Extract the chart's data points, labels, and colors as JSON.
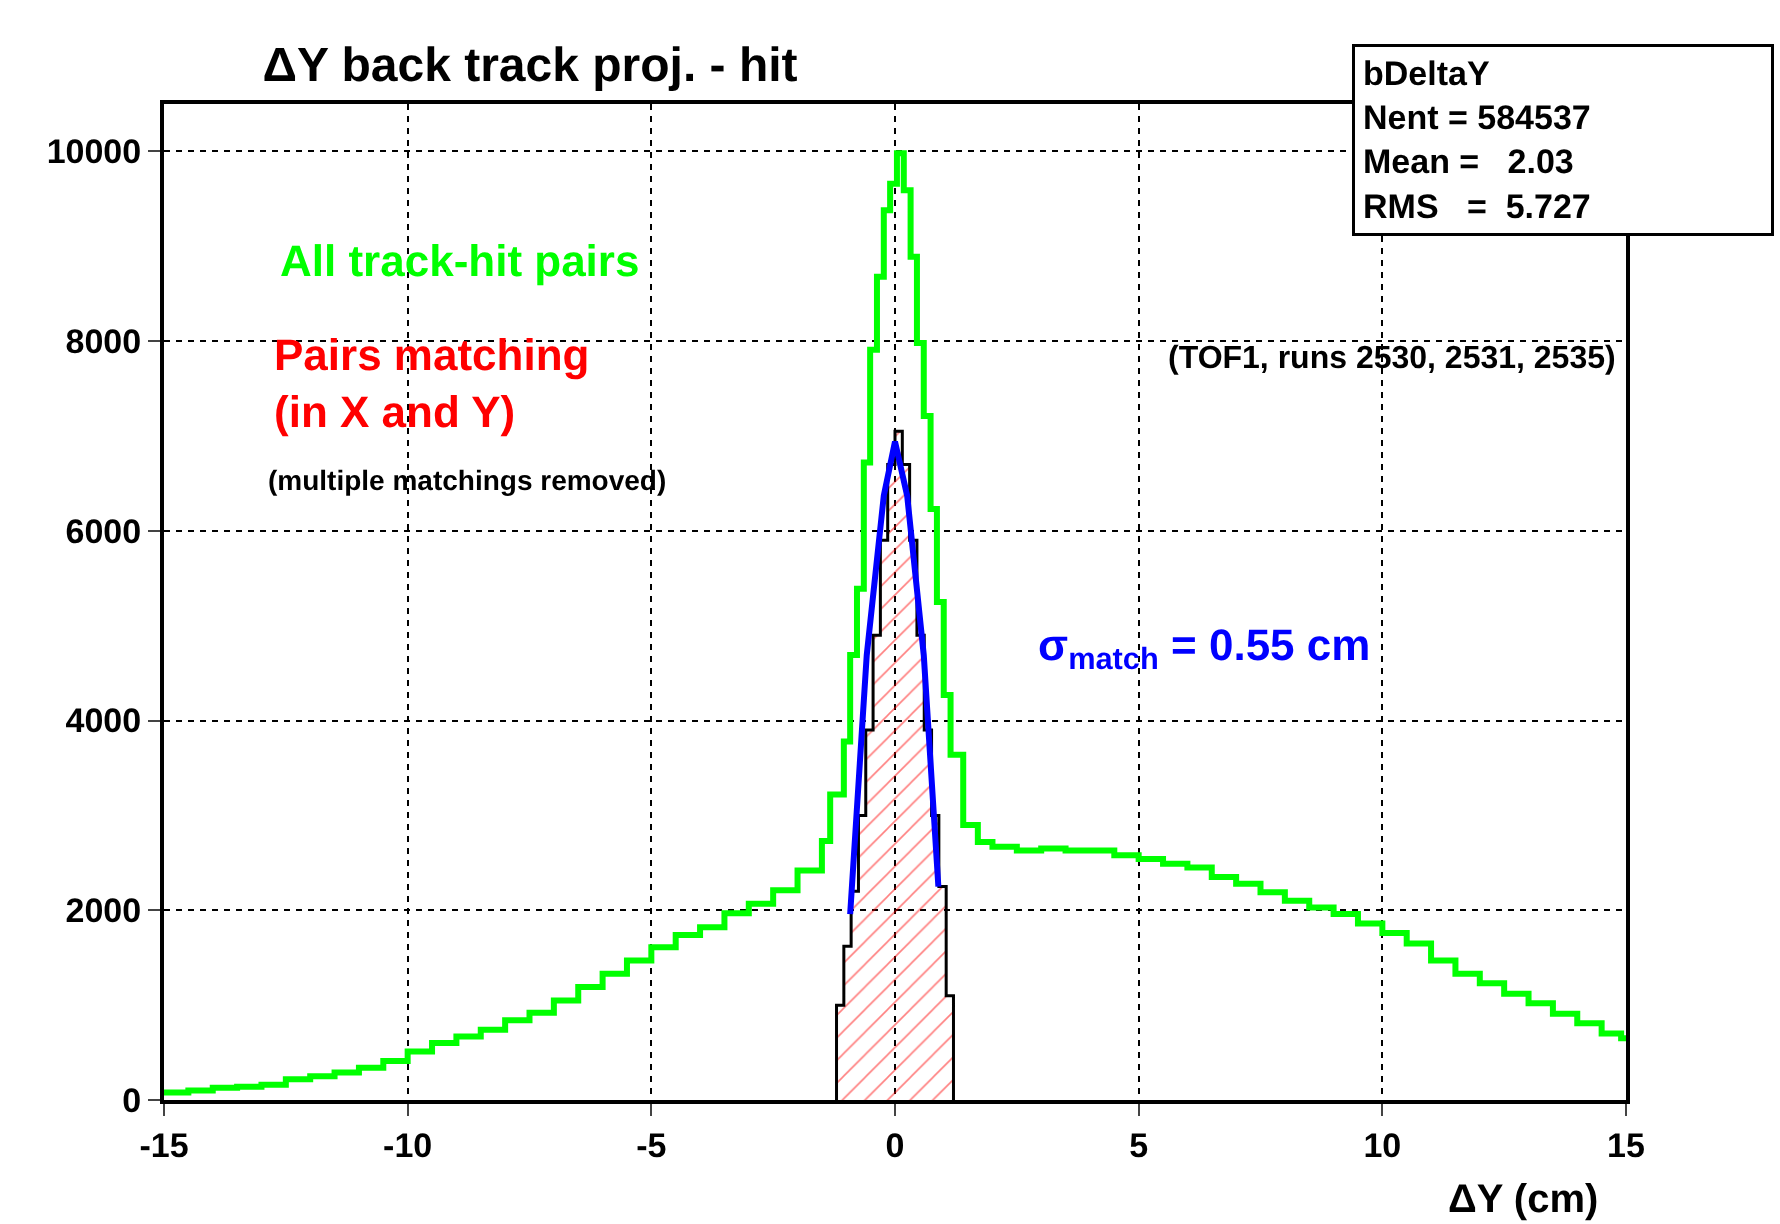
{
  "chart_data": {
    "type": "step",
    "title": "ΔY back track proj. - hit",
    "xlabel": "ΔY (cm)",
    "xlim": [
      -15,
      15
    ],
    "xticks": [
      -15,
      -10,
      -5,
      0,
      5,
      10,
      15
    ],
    "ylim": [
      0,
      10500
    ],
    "yticks": [
      0,
      2000,
      4000,
      6000,
      8000,
      10000
    ],
    "grid": true,
    "series": [
      {
        "color": "#00ff00",
        "x": [
          -15,
          -14.5,
          -14,
          -13.5,
          -13,
          -12.5,
          -12,
          -11.5,
          -11,
          -10.5,
          -10,
          -9.5,
          -9,
          -8.5,
          -8,
          -7.5,
          -7,
          -6.5,
          -6,
          -5.5,
          -5,
          -4.5,
          -4,
          -3.5,
          -3,
          -2.5,
          -2,
          -1.5,
          -1.33,
          -1.05,
          -0.92,
          -0.78,
          -0.64,
          -0.51,
          -0.37,
          -0.23,
          -0.1,
          0.04,
          0.18,
          0.32,
          0.45,
          0.59,
          0.73,
          0.86,
          1.0,
          1.14,
          1.4,
          1.7,
          2,
          2.5,
          3,
          3.5,
          4,
          4.5,
          5,
          5.5,
          6,
          6.5,
          7,
          7.5,
          8,
          8.5,
          9,
          9.5,
          10,
          10.5,
          11,
          11.5,
          12,
          12.5,
          13,
          13.5,
          14,
          14.5,
          14.9,
          15
        ],
        "values": [
          80,
          100,
          130,
          140,
          160,
          220,
          250,
          290,
          340,
          410,
          510,
          600,
          670,
          740,
          840,
          920,
          1050,
          1190,
          1330,
          1470,
          1610,
          1740,
          1820,
          1970,
          2070,
          2210,
          2420,
          2730,
          3220,
          3780,
          4690,
          5390,
          6720,
          7910,
          8680,
          9380,
          9660,
          9980,
          9590,
          8890,
          7980,
          7210,
          6230,
          5250,
          4270,
          3640,
          2900,
          2720,
          2670,
          2630,
          2650,
          2630,
          2630,
          2580,
          2540,
          2490,
          2450,
          2350,
          2280,
          2190,
          2100,
          2030,
          1960,
          1860,
          1760,
          1650,
          1470,
          1330,
          1230,
          1120,
          1020,
          910,
          810,
          700,
          650,
          650
        ]
      },
      {
        "type": "histogram",
        "color": "#000000",
        "bins": [
          -1.2,
          -1.05,
          -0.9,
          -0.75,
          -0.6,
          -0.45,
          -0.3,
          -0.15,
          0,
          0.15,
          0.3,
          0.45,
          0.6,
          0.75,
          0.9,
          1.05,
          1.2
        ],
        "values": [
          1000,
          1620,
          2200,
          3000,
          3900,
          4900,
          5900,
          6700,
          7050,
          6700,
          5900,
          4900,
          3900,
          3000,
          2250,
          1100
        ]
      },
      {
        "type": "line",
        "color": "#0000ff",
        "x": [
          -0.92,
          -0.58,
          -0.23,
          0,
          0.25,
          0.59,
          0.89
        ],
        "values": [
          1960,
          4690,
          6370,
          6940,
          6370,
          4690,
          2250
        ]
      }
    ],
    "annotations": [
      "All track-hit pairs",
      "Pairs matching\n(in X and Y)",
      "(multiple matchings removed)",
      "(TOF1, runs 2530, 2531, 2535)",
      "σ$_{match}$ = 0.55 cm",
      "bDeltaY\nNent = 584537\nMean =   2.03\nRMS   =  5.727"
    ]
  }
}
